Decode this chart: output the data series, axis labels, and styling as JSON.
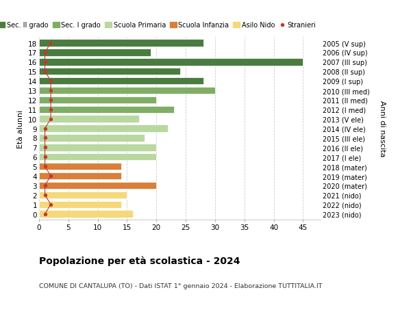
{
  "ages": [
    18,
    17,
    16,
    15,
    14,
    13,
    12,
    11,
    10,
    9,
    8,
    7,
    6,
    5,
    4,
    3,
    2,
    1,
    0
  ],
  "years": [
    "2005 (V sup)",
    "2006 (IV sup)",
    "2007 (III sup)",
    "2008 (II sup)",
    "2009 (I sup)",
    "2010 (III med)",
    "2011 (II med)",
    "2012 (I med)",
    "2013 (V ele)",
    "2014 (IV ele)",
    "2015 (III ele)",
    "2016 (II ele)",
    "2017 (I ele)",
    "2018 (mater)",
    "2019 (mater)",
    "2020 (mater)",
    "2021 (nido)",
    "2022 (nido)",
    "2023 (nido)"
  ],
  "bar_values": [
    28,
    19,
    45,
    24,
    28,
    30,
    20,
    23,
    17,
    22,
    18,
    20,
    20,
    14,
    14,
    20,
    15,
    14,
    16
  ],
  "bar_colors": [
    "#4a7c40",
    "#4a7c40",
    "#4a7c40",
    "#4a7c40",
    "#4a7c40",
    "#7fad65",
    "#7fad65",
    "#7fad65",
    "#b8d8a0",
    "#b8d8a0",
    "#b8d8a0",
    "#b8d8a0",
    "#b8d8a0",
    "#d97f3a",
    "#d97f3a",
    "#d97f3a",
    "#f5d87a",
    "#f5d87a",
    "#f5d87a"
  ],
  "stranieri_values": [
    2,
    1,
    1,
    1,
    2,
    2,
    2,
    2,
    2,
    1,
    1,
    1,
    1,
    1,
    2,
    1,
    1,
    2,
    1
  ],
  "legend_labels": [
    "Sec. II grado",
    "Sec. I grado",
    "Scuola Primaria",
    "Scuola Infanzia",
    "Asilo Nido",
    "Stranieri"
  ],
  "legend_colors": [
    "#4a7c40",
    "#7fad65",
    "#b8d8a0",
    "#d97f3a",
    "#f5d87a",
    "#c0392b"
  ],
  "title": "Popolazione per età scolastica - 2024",
  "subtitle": "COMUNE DI CANTALUPA (TO) - Dati ISTAT 1° gennaio 2024 - Elaborazione TUTTITALIA.IT",
  "ylabel": "Età alunni",
  "ylabel2": "Anni di nascita",
  "xlabel_vals": [
    0,
    5,
    10,
    15,
    20,
    25,
    30,
    35,
    40,
    45
  ],
  "xlim": [
    0,
    48
  ],
  "bg_color": "#ffffff",
  "stranieri_color": "#c0392b",
  "bar_height": 0.75
}
